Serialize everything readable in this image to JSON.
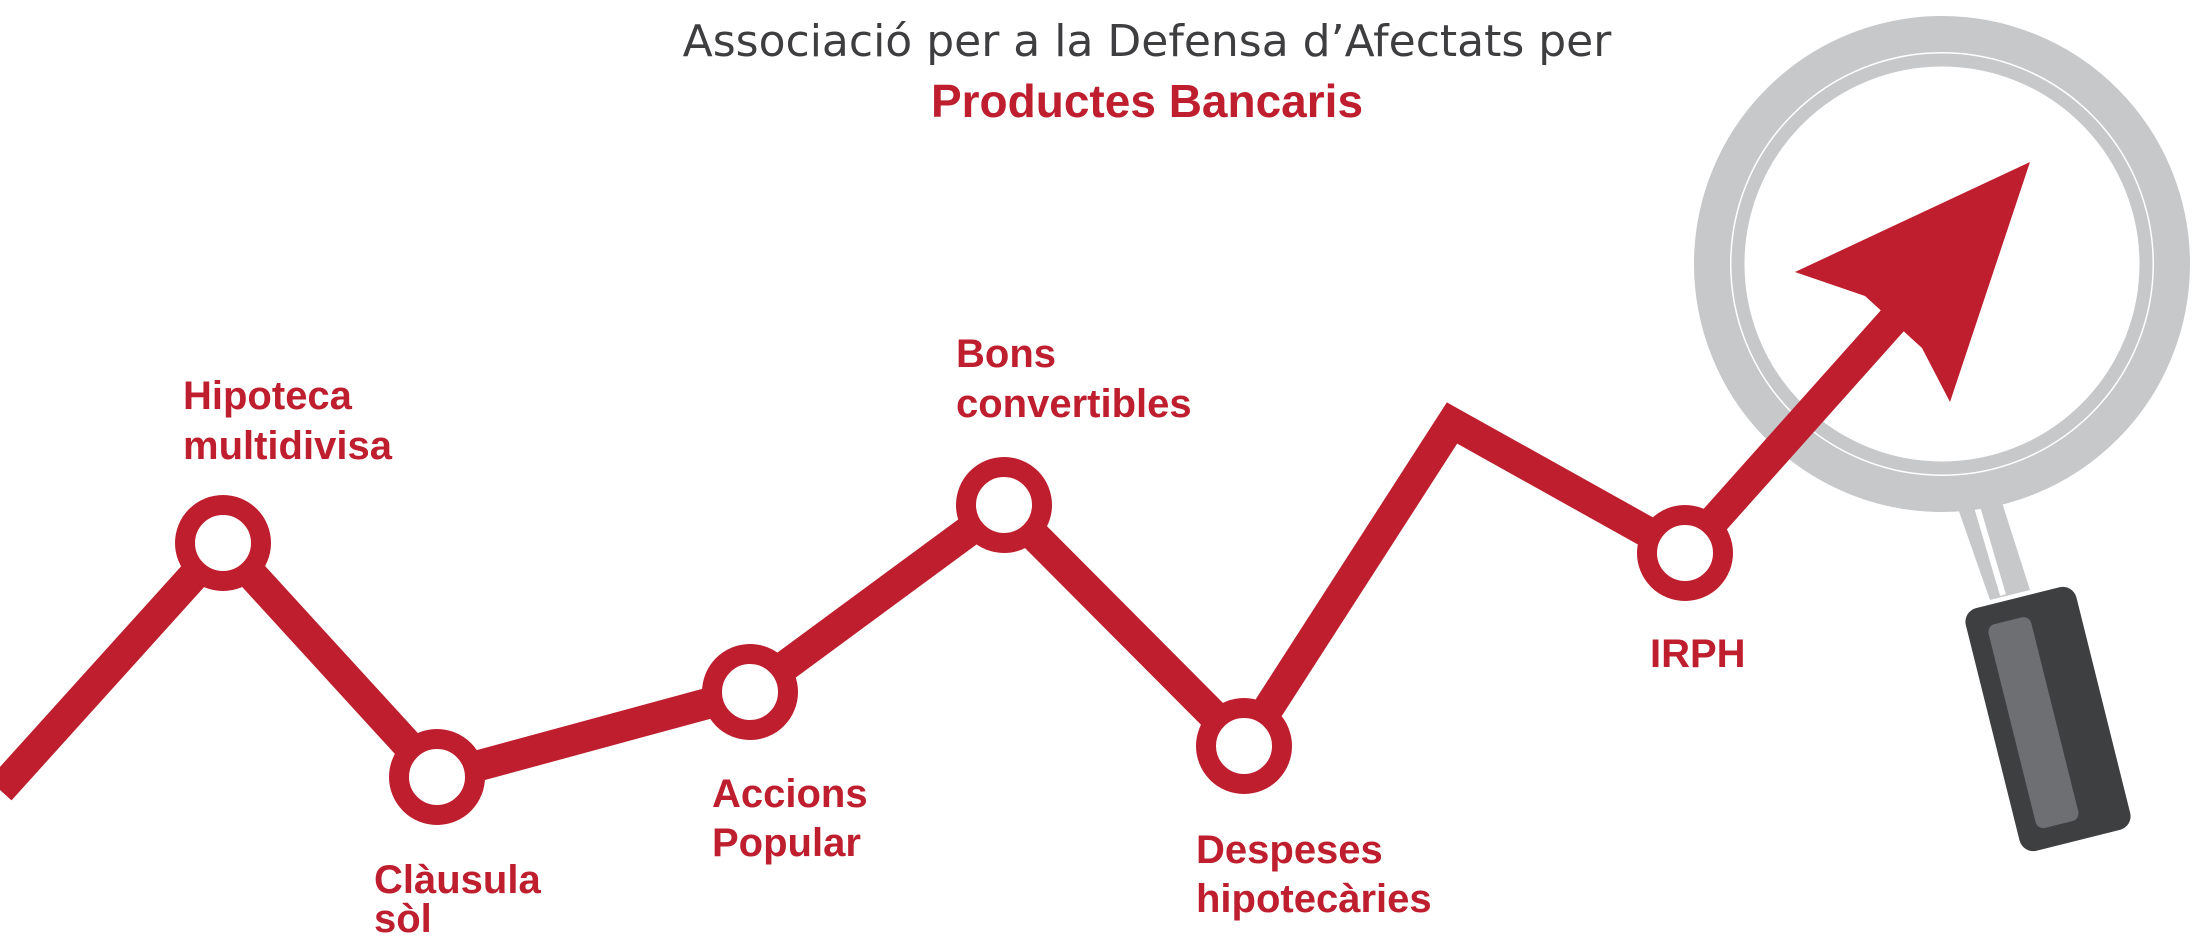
{
  "header": {
    "line1": "Associació per a la Defensa d’Afectats per",
    "line2": "Productes Bancaris"
  },
  "nodes": [
    {
      "label": [
        "Hipoteca",
        "multidivisa"
      ]
    },
    {
      "label": [
        "Clàusula",
        "sòl"
      ]
    },
    {
      "label": [
        "Accions",
        "Popular"
      ]
    },
    {
      "label": [
        "Bons",
        "convertibles"
      ]
    },
    {
      "label": [
        "Despeses",
        "hipotecàries"
      ]
    },
    {
      "label": [
        "IRPH"
      ]
    }
  ]
}
